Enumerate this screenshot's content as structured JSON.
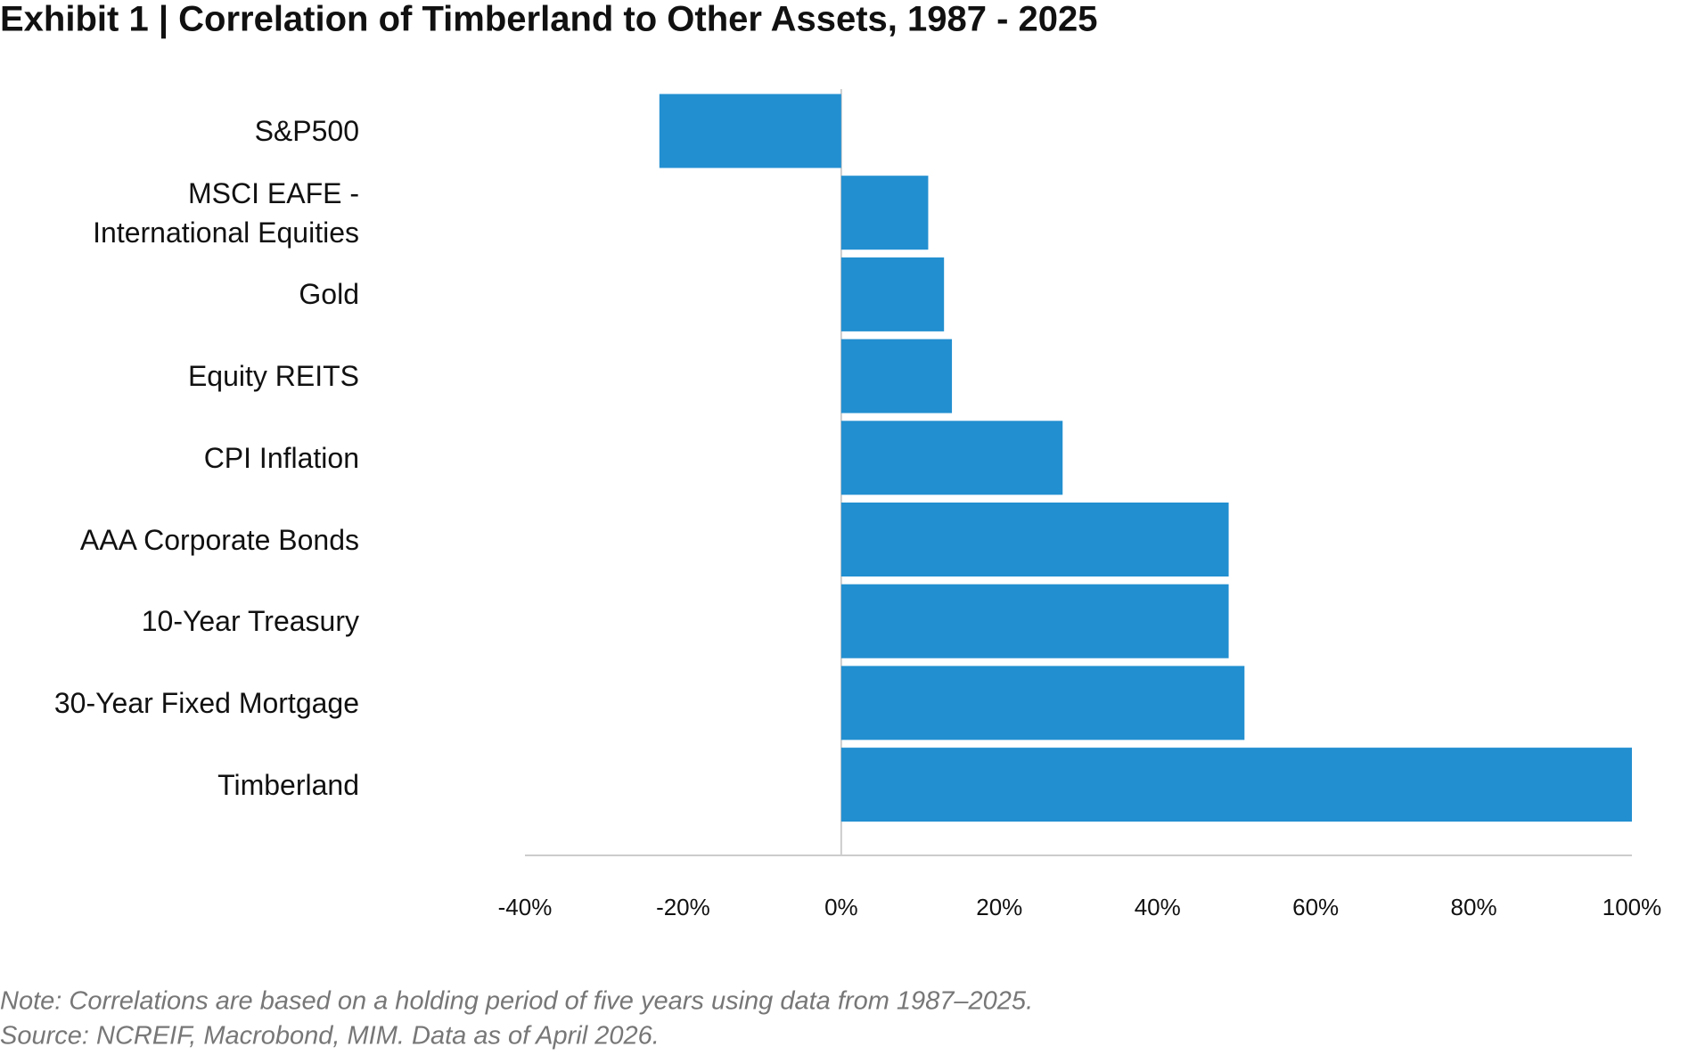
{
  "chart_data": {
    "type": "hbar",
    "title": "Exhibit 1 | Correlation of Timberland to Other Assets, 1987 - 2025",
    "categories": [
      "S&P500",
      "MSCI EAFE -\nInternational Equities",
      "Gold",
      "Equity REITS",
      "CPI Inflation",
      "AAA Corporate Bonds",
      "10-Year Treasury",
      "30-Year Fixed Mortgage",
      "Timberland"
    ],
    "values": [
      -23,
      11,
      13,
      14,
      28,
      49,
      49,
      51,
      100
    ],
    "color": "#228fd0",
    "xlim": [
      -40,
      100
    ],
    "xticks": [
      {
        "value": -40,
        "label": "-40%"
      },
      {
        "value": -20,
        "label": "-20%"
      },
      {
        "value": 0,
        "label": "0%"
      },
      {
        "value": 20,
        "label": "20%"
      },
      {
        "value": 40,
        "label": "40%"
      },
      {
        "value": 60,
        "label": "60%"
      },
      {
        "value": 80,
        "label": "80%"
      },
      {
        "value": 100,
        "label": "100%"
      }
    ],
    "note": "Note: Correlations are based on a holding period of five years using data from 1987–2025.",
    "source": "Source: NCREIF, Macrobond, MIM. Data as of April 2026."
  }
}
